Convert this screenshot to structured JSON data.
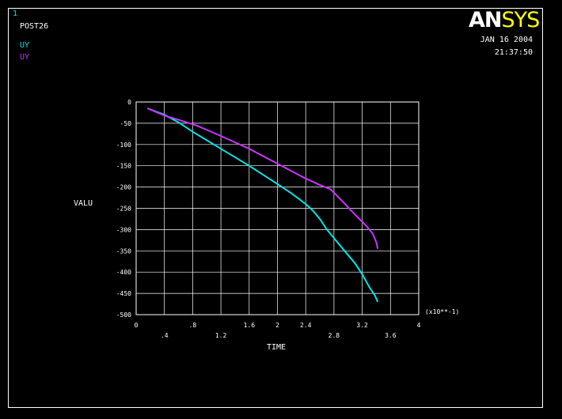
{
  "header": {
    "window_number": "1",
    "post_label": "POST26",
    "date": "JAN 16 2004",
    "time": "21:37:50",
    "logo_left": "AN",
    "logo_right": "SYS"
  },
  "colors": {
    "background": "#000000",
    "frame": "#ffffff",
    "grid": "#ffffff",
    "series1": "#00e6e6",
    "series2": "#cc33ff",
    "logo_sys": "#ffff00"
  },
  "chart_data": {
    "type": "line",
    "xlabel": "TIME",
    "ylabel": "VALU",
    "x_multiplier": "(x10**-1)",
    "xlim": [
      0,
      4
    ],
    "ylim": [
      -500,
      0
    ],
    "grid": true,
    "x_ticks_top_row": [
      "0",
      ".8",
      "1.6",
      "2",
      "2.4",
      "3.2",
      "4"
    ],
    "x_ticks_bottom_row": [
      ".4",
      "1.2",
      "2.8",
      "3.6"
    ],
    "x_ticks_top_row_values": [
      0,
      0.8,
      1.6,
      2.0,
      2.4,
      3.2,
      4.0
    ],
    "x_ticks_bottom_row_values": [
      0.4,
      1.2,
      2.8,
      3.6
    ],
    "y_ticks": [
      "0",
      "-50",
      "-100",
      "-150",
      "-200",
      "-250",
      "-300",
      "-350",
      "-400",
      "-450",
      "-500"
    ],
    "y_tick_values": [
      0,
      -50,
      -100,
      -150,
      -200,
      -250,
      -300,
      -350,
      -400,
      -450,
      -500
    ],
    "series": [
      {
        "name": "UY",
        "color": "#00e6e6",
        "points": [
          [
            0.16,
            -15
          ],
          [
            0.4,
            -30
          ],
          [
            0.6,
            -48
          ],
          [
            0.8,
            -70
          ],
          [
            1.2,
            -110
          ],
          [
            1.6,
            -150
          ],
          [
            2.0,
            -193
          ],
          [
            2.2,
            -215
          ],
          [
            2.4,
            -240
          ],
          [
            2.5,
            -255
          ],
          [
            2.6,
            -275
          ],
          [
            2.7,
            -300
          ],
          [
            2.8,
            -320
          ],
          [
            3.0,
            -360
          ],
          [
            3.1,
            -380
          ],
          [
            3.2,
            -405
          ],
          [
            3.3,
            -435
          ],
          [
            3.38,
            -455
          ],
          [
            3.42,
            -470
          ]
        ]
      },
      {
        "name": "UY",
        "color": "#cc33ff",
        "points": [
          [
            0.16,
            -15
          ],
          [
            0.4,
            -32
          ],
          [
            0.6,
            -42
          ],
          [
            0.85,
            -55
          ],
          [
            1.2,
            -80
          ],
          [
            1.6,
            -110
          ],
          [
            2.0,
            -145
          ],
          [
            2.4,
            -180
          ],
          [
            2.6,
            -195
          ],
          [
            2.75,
            -205
          ],
          [
            2.9,
            -230
          ],
          [
            3.1,
            -265
          ],
          [
            3.25,
            -290
          ],
          [
            3.35,
            -310
          ],
          [
            3.4,
            -330
          ],
          [
            3.42,
            -345
          ]
        ]
      }
    ]
  }
}
